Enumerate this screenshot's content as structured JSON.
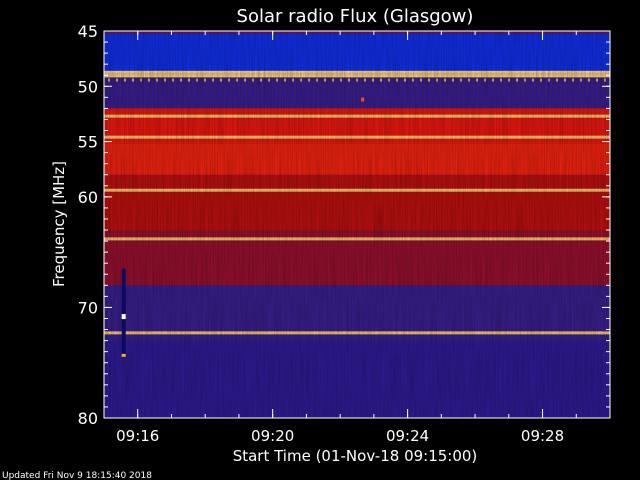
{
  "chart_data": {
    "type": "heatmap",
    "title": "Solar radio Flux (Glasgow)",
    "xlabel": "Start Time (01-Nov-18 09:15:00)",
    "ylabel": "Frequency [MHz]",
    "xlim": [
      "09:15:00",
      "09:30:00"
    ],
    "ylim": [
      45,
      80
    ],
    "x_ticks": [
      "09:16",
      "09:20",
      "09:24",
      "09:28"
    ],
    "y_ticks": [
      45,
      50,
      55,
      60,
      70,
      80
    ],
    "bands": [
      {
        "from": 45.3,
        "to": 48.6,
        "level": "high-blue"
      },
      {
        "from": 48.6,
        "to": 49.2,
        "level": "peak"
      },
      {
        "from": 49.2,
        "to": 52.0,
        "level": "low"
      },
      {
        "from": 52.0,
        "to": 58.0,
        "level": "strong"
      },
      {
        "from": 58.0,
        "to": 63.0,
        "level": "medium"
      },
      {
        "from": 63.0,
        "to": 68.0,
        "level": "medium-low"
      },
      {
        "from": 68.0,
        "to": 80.0,
        "level": "low"
      }
    ],
    "interference_lines_mhz": [
      48.9,
      52.7,
      54.6,
      59.4,
      63.8,
      72.3
    ],
    "burst": {
      "time": "09:15:35",
      "from_mhz": 66.5,
      "to_mhz": 74.5
    },
    "spot": {
      "time": "09:22:40",
      "mhz": 51.2
    },
    "colors": {
      "background": "#000000",
      "text": "#ffffff"
    }
  },
  "footer": {
    "updated": "Updated Fri Nov  9 18:15:40 2018"
  }
}
